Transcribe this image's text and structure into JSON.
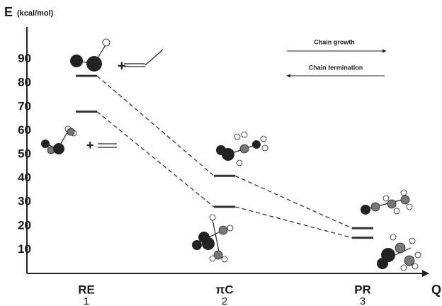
{
  "chart_data": {
    "type": "energy-levels",
    "y_label": "E",
    "y_unit": "(kcal/mol)",
    "x_label": "Q",
    "categories": [
      "RE",
      "πC",
      "PR"
    ],
    "category_numbers": [
      "1",
      "2",
      "3"
    ],
    "series": [
      {
        "color": "#333333",
        "values": [
          83,
          41,
          19
        ]
      },
      {
        "color": "#333333",
        "values": [
          68,
          28,
          15
        ]
      }
    ],
    "ylim": [
      0,
      103
    ],
    "yticks": [
      10,
      20,
      30,
      40,
      50,
      60,
      70,
      80,
      90
    ],
    "annotations": [
      "Chain growth",
      "Chain termination"
    ],
    "plus_signs": [
      "+",
      "+"
    ]
  }
}
